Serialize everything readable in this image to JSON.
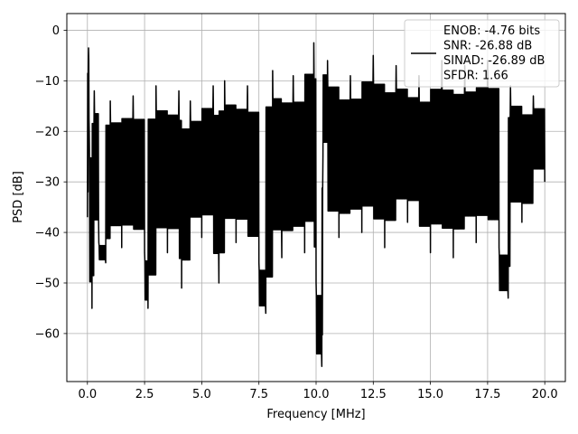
{
  "chart_data": {
    "type": "line",
    "title": "",
    "xlabel": "Frequency [MHz]",
    "ylabel": "PSD [dB]",
    "xlim": [
      -0.9,
      20.9
    ],
    "ylim": [
      -69.5,
      3.3
    ],
    "xticks": [
      0.0,
      2.5,
      5.0,
      7.5,
      10.0,
      12.5,
      15.0,
      17.5,
      20.0
    ],
    "xtick_labels": [
      "0.0",
      "2.5",
      "5.0",
      "7.5",
      "10.0",
      "12.5",
      "15.0",
      "17.5",
      "20.0"
    ],
    "yticks": [
      0,
      -10,
      -20,
      -30,
      -40,
      -50,
      -60
    ],
    "ytick_labels": [
      "0",
      "−10",
      "−20",
      "−30",
      "−40",
      "−50",
      "−60"
    ],
    "grid": true,
    "legend_position": "top-right",
    "series": [
      {
        "name": "ENOB: -4.76 bits\nSNR: -26.88 dB\nSINAD: -26.89 dB\nSFDR: 1.66",
        "color": "#000000",
        "x": [
          0.0,
          0.05,
          0.08,
          0.2,
          0.3,
          0.5,
          0.8,
          1.0,
          1.5,
          2.0,
          2.5,
          2.65,
          3.0,
          3.5,
          4.0,
          4.12,
          4.5,
          5.0,
          5.5,
          5.75,
          6.0,
          6.5,
          7.0,
          7.5,
          7.8,
          8.1,
          8.5,
          9.0,
          9.5,
          9.9,
          10.0,
          10.25,
          10.3,
          10.5,
          11.0,
          11.5,
          12.0,
          12.5,
          13.0,
          13.5,
          14.0,
          14.5,
          15.0,
          15.5,
          16.0,
          16.5,
          17.0,
          17.5,
          18.0,
          18.4,
          18.5,
          19.0,
          19.5,
          20.0
        ],
        "y": [
          -37,
          -3.5,
          -20,
          -55,
          -12,
          -42,
          -46,
          -14,
          -43,
          -13,
          -44,
          -55,
          -11,
          -44,
          -12,
          -51,
          -14,
          -41,
          -11,
          -50,
          -10,
          -42,
          -11,
          -46,
          -56,
          -8,
          -45,
          -9,
          -44,
          -2.5,
          -50,
          -66.5,
          -25,
          -6,
          -41,
          -9,
          -40,
          -5,
          -43,
          -7,
          -38,
          -9,
          -44,
          -6,
          -45,
          -7,
          -42,
          -6,
          -43,
          -53,
          -11,
          -38,
          -13,
          -30
        ]
      }
    ]
  }
}
